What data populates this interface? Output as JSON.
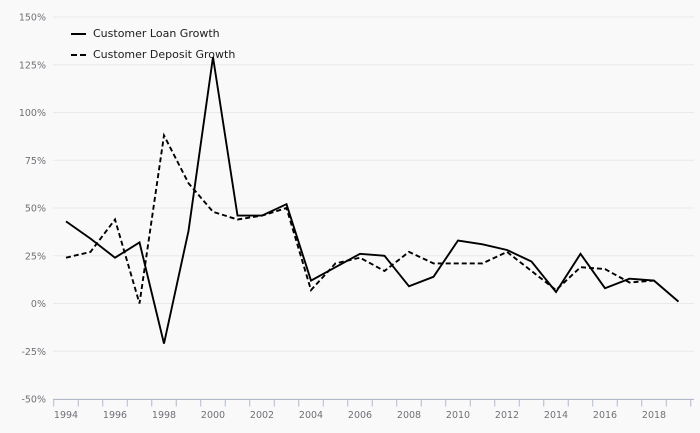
{
  "chart_data": {
    "type": "line",
    "title": "",
    "xlabel": "",
    "ylabel": "",
    "x": [
      1994,
      1995,
      1996,
      1997,
      1998,
      1999,
      2000,
      2001,
      2002,
      2003,
      2004,
      2005,
      2006,
      2007,
      2008,
      2009,
      2010,
      2011,
      2012,
      2013,
      2014,
      2015,
      2016,
      2017,
      2018,
      2019
    ],
    "series": [
      {
        "name": "Customer Loan Growth",
        "line_style": "solid",
        "color": "#000000",
        "values": [
          43,
          34,
          24,
          32,
          -21,
          38,
          129,
          46,
          46,
          52,
          12,
          19,
          26,
          25,
          9,
          14,
          33,
          31,
          28,
          22,
          6,
          26,
          8,
          13,
          12,
          1
        ]
      },
      {
        "name": "Customer Deposit Growth",
        "line_style": "dashed",
        "color": "#000000",
        "values": [
          24,
          27,
          44,
          0,
          88,
          63,
          48,
          44,
          46,
          50,
          7,
          21,
          24,
          17,
          27,
          21,
          21,
          21,
          27,
          17,
          7,
          19,
          18,
          11,
          12,
          null
        ]
      }
    ],
    "ylim": [
      -50,
      150
    ],
    "ytick_values": [
      150,
      125,
      100,
      75,
      50,
      25,
      0,
      -25,
      -50
    ],
    "ytick_labels": [
      "150%",
      "125%",
      "100%",
      "75%",
      "50%",
      "25%",
      "0%",
      "-25%",
      "-50%"
    ],
    "xtick_values": [
      1994,
      1996,
      1998,
      2000,
      2002,
      2004,
      2006,
      2008,
      2010,
      2012,
      2014,
      2016,
      2018
    ],
    "xtick_labels": [
      "1994",
      "1996",
      "1998",
      "2000",
      "2002",
      "2004",
      "2006",
      "2008",
      "2010",
      "2012",
      "2014",
      "2016",
      "2018"
    ],
    "minor_ticks": "every year boundary",
    "grid": "horizontal",
    "legend_position": "top-left",
    "colors": {
      "background": "#f9f9fa",
      "grid": "#e9e9eb",
      "axis": "#b3b9cb",
      "tick_text": "#6f7175",
      "legend_text": "#1c1c1c",
      "line": "#000000"
    }
  }
}
